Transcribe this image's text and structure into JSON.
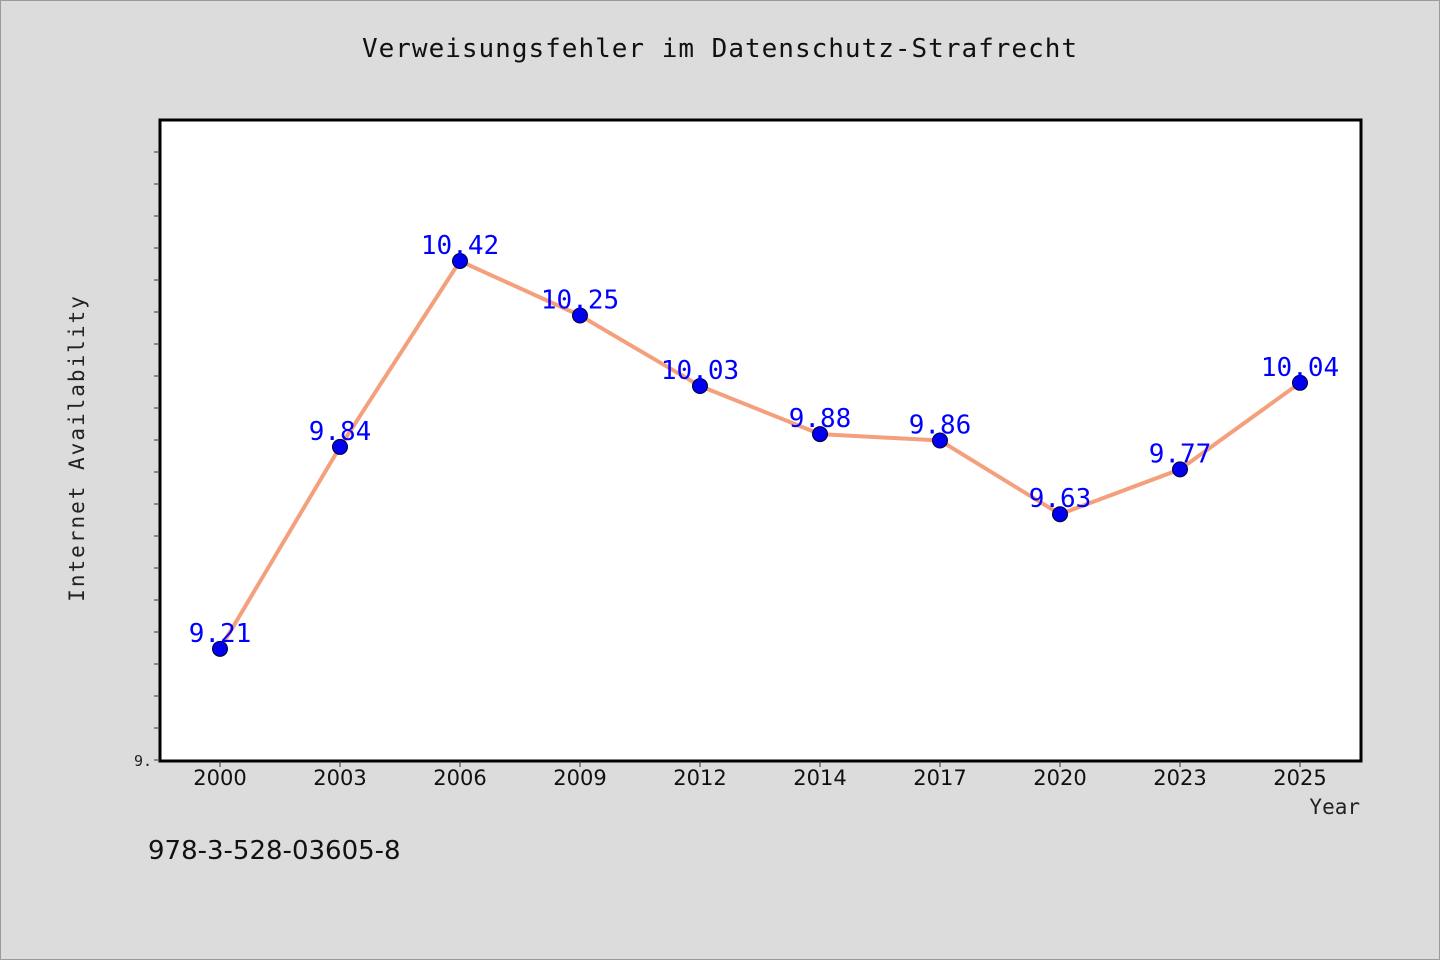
{
  "chart_data": {
    "type": "line",
    "title": "Verweisungsfehler im Datenschutz-Strafrecht",
    "xlabel": "Year",
    "ylabel": "Internet Availability",
    "y_tick_label": "9.",
    "categories": [
      "2000",
      "2003",
      "2006",
      "2009",
      "2012",
      "2014",
      "2017",
      "2020",
      "2023",
      "2025"
    ],
    "series": [
      {
        "values": [
          9.21,
          9.84,
          10.42,
          10.25,
          10.03,
          9.88,
          9.86,
          9.63,
          9.77,
          10.04
        ],
        "labels": [
          "9.21",
          "9.84",
          "10.42",
          "10.25",
          "10.03",
          "9.88",
          "9.86",
          "9.63",
          "9.77",
          "10.04"
        ]
      }
    ],
    "ylim": [
      8.86,
      10.86
    ],
    "grid": false,
    "colors": {
      "line": "#f4a07c",
      "marker": "#0000ee",
      "label": "#0000ff",
      "plot_bg": "#ffffff",
      "page_bg": "#dcdcdc"
    }
  },
  "footer": {
    "isbn": "978-3-528-03605-8"
  }
}
